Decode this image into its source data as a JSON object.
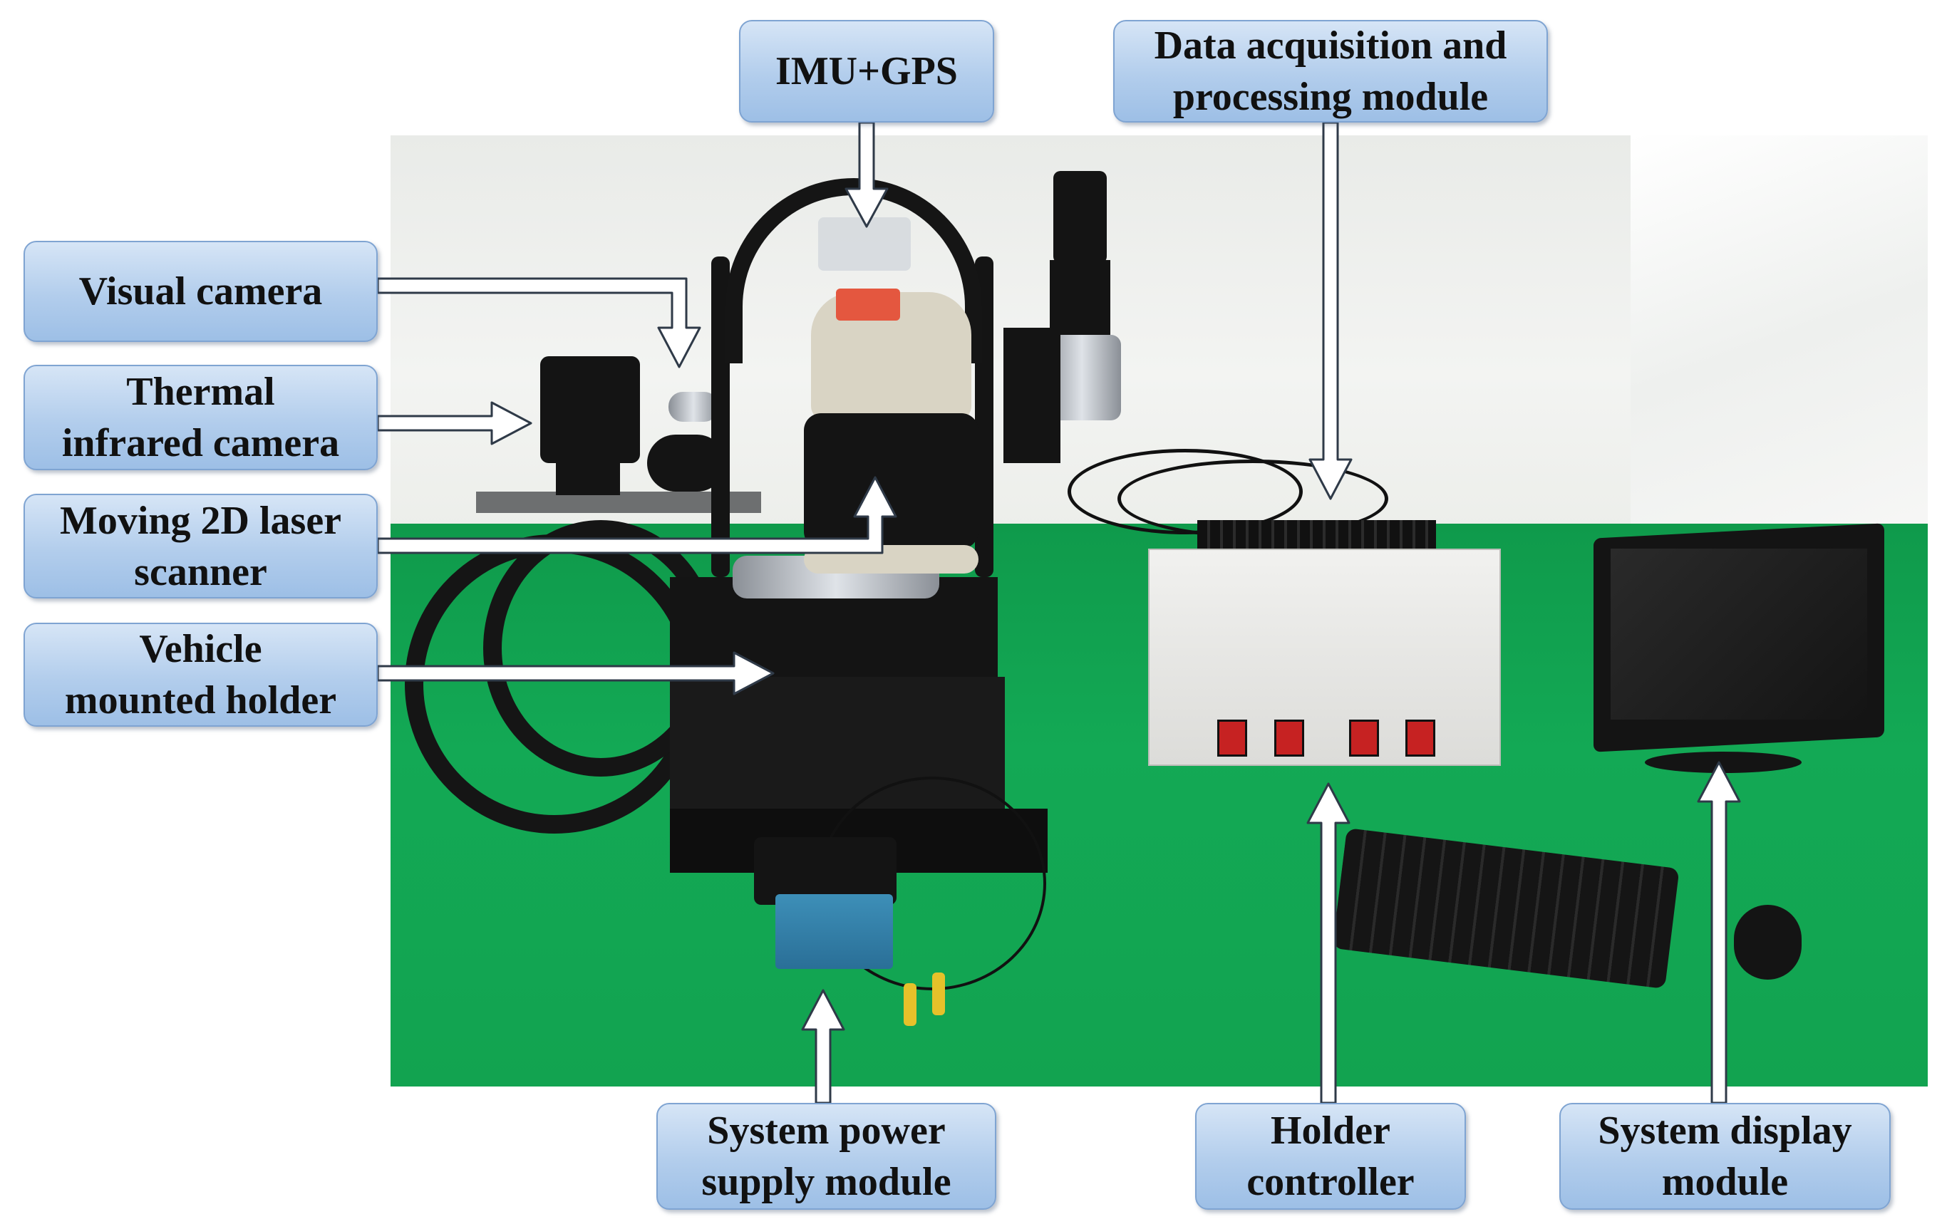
{
  "labels": {
    "imu_gps": "IMU+GPS",
    "data_acquisition": "Data acquisition and\nprocessing module",
    "visual_camera": "Visual camera",
    "thermal_camera": "Thermal\ninfrared camera",
    "laser_scanner": "Moving 2D laser\nscanner",
    "vehicle_holder": "Vehicle\nmounted holder",
    "power_supply": "System power\nsupply module",
    "holder_controller": "Holder\ncontroller",
    "display_module": "System display\nmodule"
  },
  "colors": {
    "label_fill_top": "#d6e5f6",
    "label_fill_bottom": "#9dbfe6",
    "label_border": "#7fa4d2",
    "arrow_fill": "#ffffff",
    "arrow_stroke": "#2f3a48",
    "floor_green": "#12a350",
    "wall": "#eceeea"
  },
  "icons": {
    "arrow": "white-block-arrow"
  }
}
